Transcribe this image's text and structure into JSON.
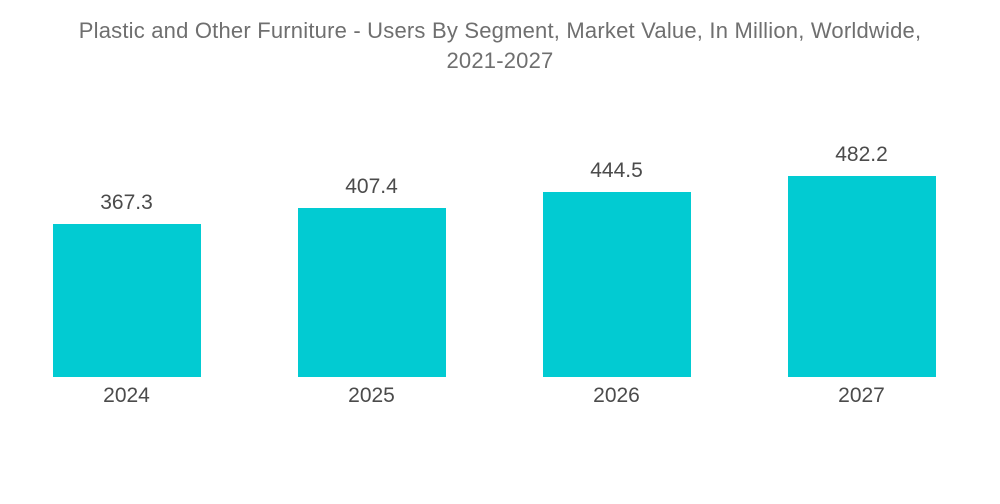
{
  "chart_data": {
    "type": "bar",
    "title": "Plastic and Other Furniture - Users By Segment, Market Value, In Million, Worldwide, 2021-2027",
    "title_line1": "Plastic and Other Furniture - Users By Segment, Market Value, In Million, Worldwide,",
    "title_line2": "2021-2027",
    "categories": [
      "2024",
      "2025",
      "2026",
      "2027"
    ],
    "values": [
      367.3,
      407.4,
      444.5,
      482.2
    ],
    "value_labels": [
      "367.3",
      "407.4",
      "444.5",
      "482.2"
    ],
    "xlabel": "",
    "ylabel": "",
    "ylim": [
      0,
      500
    ],
    "grid": false,
    "legend": "none",
    "bar_color": "#02cbd2",
    "title_color": "#6f6f6f",
    "label_color": "#4b4b4b",
    "background_color": "#ffffff"
  }
}
